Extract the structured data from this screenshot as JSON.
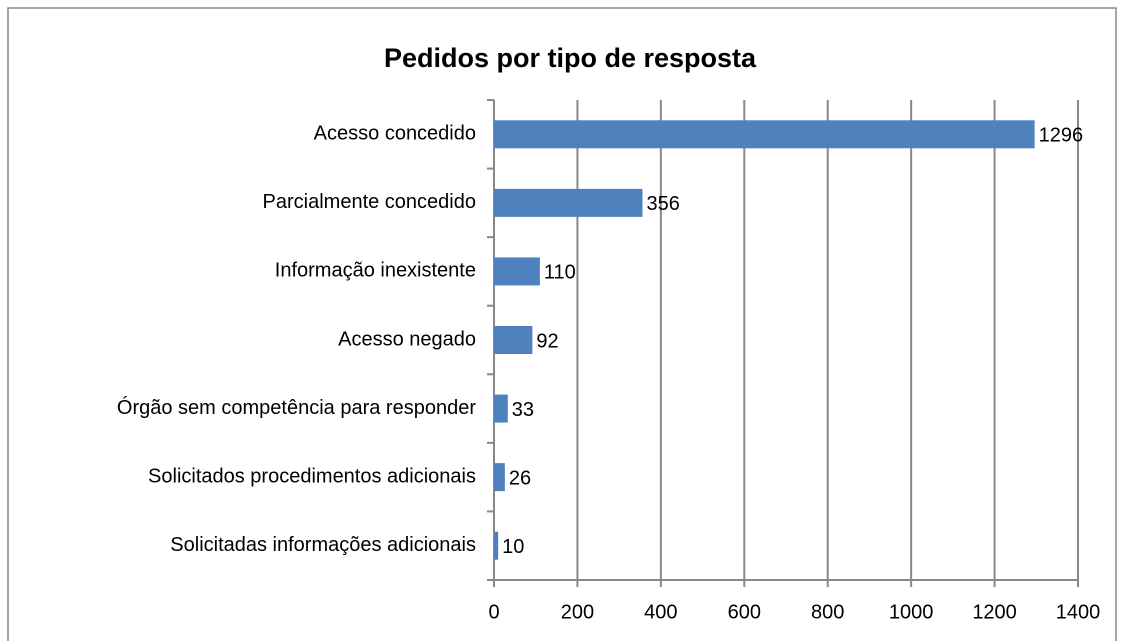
{
  "chart_data": {
    "type": "barh",
    "title": "Pedidos por tipo de resposta",
    "categories": [
      "Acesso concedido",
      "Parcialmente concedido",
      "Informação inexistente",
      "Acesso negado",
      "Órgão sem competência para responder",
      "Solicitados procedimentos adicionais",
      "Solicitadas informações adicionais"
    ],
    "values": [
      1296,
      356,
      110,
      92,
      33,
      26,
      10
    ],
    "color": "#4f81bd",
    "xlim": [
      0,
      1400
    ],
    "xticks": [
      0,
      200,
      400,
      600,
      800,
      1000,
      1200,
      1400
    ],
    "grid": true
  }
}
